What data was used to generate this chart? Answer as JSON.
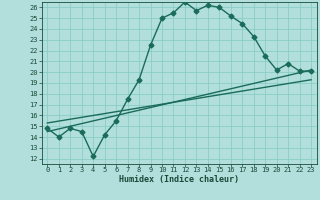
{
  "title": "",
  "xlabel": "Humidex (Indice chaleur)",
  "bg_color": "#b2dfdb",
  "grid_color": "#80cbc4",
  "line_color": "#1a6b5a",
  "xlim": [
    -0.5,
    23.5
  ],
  "ylim": [
    11.5,
    26.5
  ],
  "xticks": [
    0,
    1,
    2,
    3,
    4,
    5,
    6,
    7,
    8,
    9,
    10,
    11,
    12,
    13,
    14,
    15,
    16,
    17,
    18,
    19,
    20,
    21,
    22,
    23
  ],
  "yticks": [
    12,
    13,
    14,
    15,
    16,
    17,
    18,
    19,
    20,
    21,
    22,
    23,
    24,
    25,
    26
  ],
  "line1_x": [
    0,
    1,
    2,
    3,
    4,
    5,
    6,
    7,
    8,
    9,
    10,
    11,
    12,
    13,
    14,
    15,
    16,
    17,
    18,
    19,
    20,
    21,
    22,
    23
  ],
  "line1_y": [
    14.8,
    14.0,
    14.8,
    14.5,
    12.2,
    14.2,
    15.5,
    17.5,
    19.3,
    22.5,
    25.0,
    25.5,
    26.5,
    25.7,
    26.2,
    26.0,
    25.2,
    24.5,
    23.3,
    21.5,
    20.2,
    20.8,
    20.1,
    20.1
  ],
  "line2_x": [
    0,
    23
  ],
  "line2_y": [
    14.5,
    20.2
  ],
  "line3_x": [
    0,
    23
  ],
  "line3_y": [
    15.3,
    19.3
  ],
  "marker": "D",
  "markersize": 2.5,
  "linewidth": 1.0
}
